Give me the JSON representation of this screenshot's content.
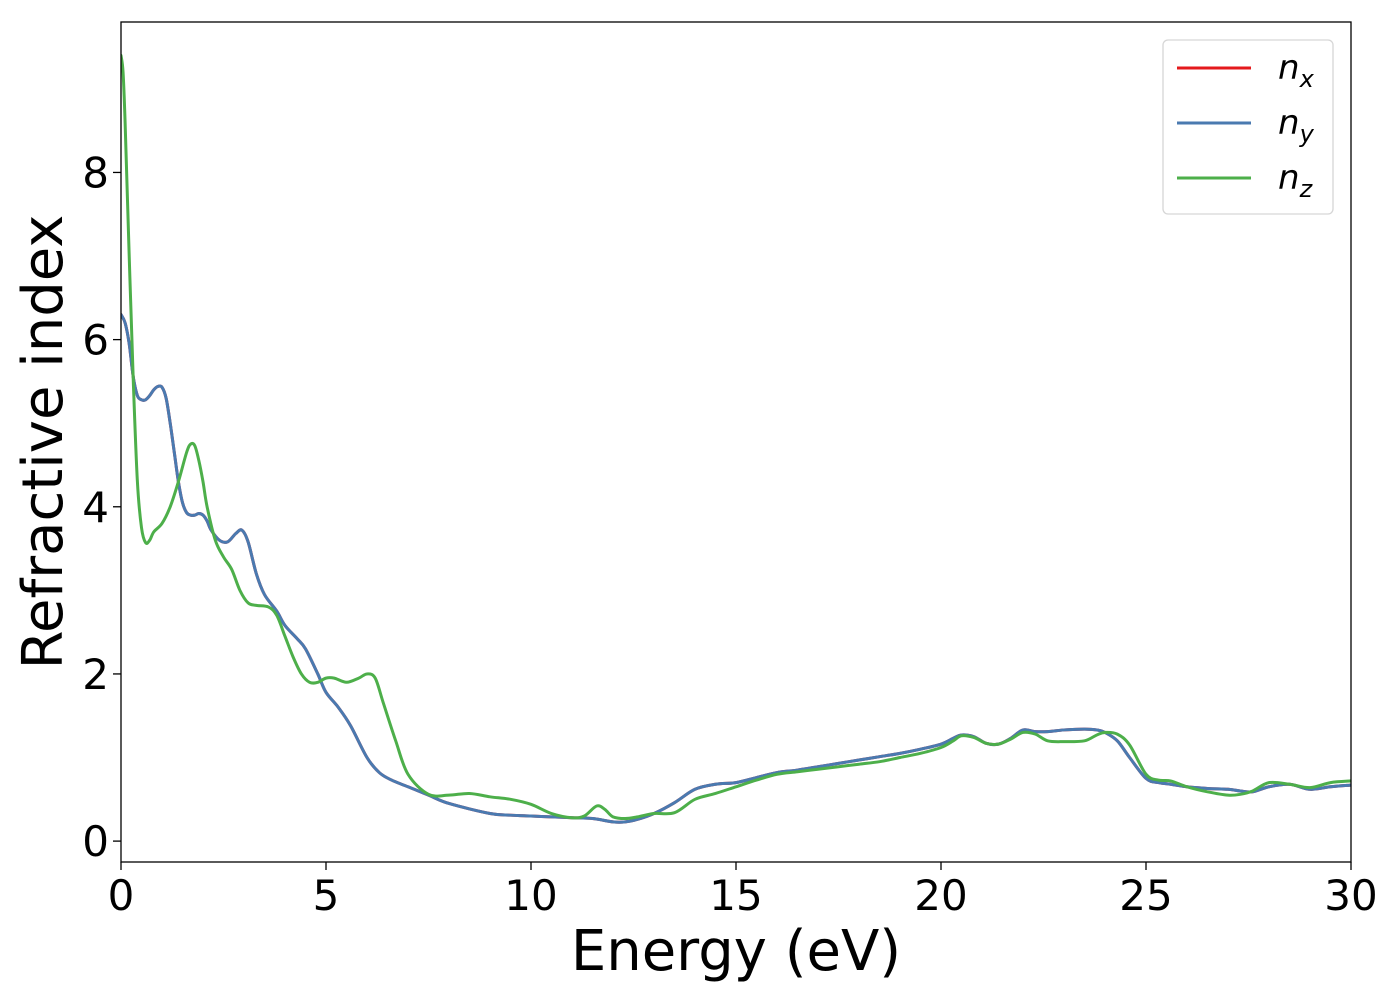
{
  "chart_data": {
    "type": "line",
    "title": "",
    "xlabel": "Energy (eV)",
    "ylabel": "Refractive index",
    "xlim": [
      0,
      30
    ],
    "ylim": [
      -0.25,
      9.8
    ],
    "xticks": [
      0,
      5,
      10,
      15,
      20,
      25,
      30
    ],
    "yticks": [
      0,
      2,
      4,
      6,
      8
    ],
    "grid": false,
    "legend_position": "top-right",
    "series": [
      {
        "name": "n_x",
        "label_main": "n",
        "label_sub": "x",
        "color": "#e41a1c",
        "x": [
          0,
          0.1,
          0.2,
          0.3,
          0.4,
          0.5,
          0.6,
          0.7,
          0.8,
          0.9,
          1.0,
          1.1,
          1.2,
          1.3,
          1.4,
          1.5,
          1.6,
          1.7,
          1.8,
          1.9,
          2.0,
          2.1,
          2.2,
          2.4,
          2.6,
          2.8,
          2.95,
          3.1,
          3.3,
          3.5,
          3.8,
          4.0,
          4.3,
          4.5,
          4.8,
          5.0,
          5.3,
          5.6,
          6.0,
          6.3,
          6.6,
          7.0,
          7.5,
          8.0,
          9.0,
          9.5,
          10.0,
          10.5,
          11.0,
          11.5,
          12.0,
          12.3,
          12.6,
          13.0,
          13.5,
          14.0,
          14.5,
          15.0,
          15.5,
          16.0,
          16.5,
          17.0,
          17.5,
          18.0,
          18.5,
          19.0,
          19.5,
          20.0,
          20.3,
          20.5,
          20.8,
          21.1,
          21.4,
          21.7,
          22.0,
          22.3,
          22.6,
          23.0,
          23.5,
          23.8,
          24.0,
          24.3,
          24.6,
          25.0,
          25.3,
          25.6,
          26.0,
          26.5,
          27.0,
          27.3,
          27.6,
          28.0,
          28.5,
          29.0,
          29.5,
          30.0
        ],
        "y": [
          6.3,
          6.2,
          5.95,
          5.55,
          5.33,
          5.28,
          5.28,
          5.33,
          5.4,
          5.44,
          5.43,
          5.3,
          5.0,
          4.65,
          4.3,
          4.05,
          3.93,
          3.9,
          3.9,
          3.92,
          3.9,
          3.83,
          3.72,
          3.6,
          3.58,
          3.68,
          3.72,
          3.58,
          3.2,
          2.95,
          2.75,
          2.58,
          2.42,
          2.3,
          2.0,
          1.78,
          1.6,
          1.38,
          1.0,
          0.82,
          0.73,
          0.65,
          0.55,
          0.45,
          0.33,
          0.31,
          0.3,
          0.29,
          0.28,
          0.27,
          0.23,
          0.23,
          0.26,
          0.33,
          0.46,
          0.62,
          0.68,
          0.7,
          0.76,
          0.82,
          0.85,
          0.89,
          0.93,
          0.97,
          1.01,
          1.05,
          1.1,
          1.16,
          1.23,
          1.27,
          1.25,
          1.17,
          1.16,
          1.23,
          1.33,
          1.31,
          1.31,
          1.33,
          1.34,
          1.33,
          1.3,
          1.2,
          1.0,
          0.75,
          0.7,
          0.68,
          0.65,
          0.63,
          0.62,
          0.6,
          0.59,
          0.65,
          0.68,
          0.62,
          0.65,
          0.67
        ]
      },
      {
        "name": "n_y",
        "label_main": "n",
        "label_sub": "y",
        "color": "#4a7ab0",
        "x": [
          0,
          0.1,
          0.2,
          0.3,
          0.4,
          0.5,
          0.6,
          0.7,
          0.8,
          0.9,
          1.0,
          1.1,
          1.2,
          1.3,
          1.4,
          1.5,
          1.6,
          1.7,
          1.8,
          1.9,
          2.0,
          2.1,
          2.2,
          2.4,
          2.6,
          2.8,
          2.95,
          3.1,
          3.3,
          3.5,
          3.8,
          4.0,
          4.3,
          4.5,
          4.8,
          5.0,
          5.3,
          5.6,
          6.0,
          6.3,
          6.6,
          7.0,
          7.5,
          8.0,
          9.0,
          9.5,
          10.0,
          10.5,
          11.0,
          11.5,
          12.0,
          12.3,
          12.6,
          13.0,
          13.5,
          14.0,
          14.5,
          15.0,
          15.5,
          16.0,
          16.5,
          17.0,
          17.5,
          18.0,
          18.5,
          19.0,
          19.5,
          20.0,
          20.3,
          20.5,
          20.8,
          21.1,
          21.4,
          21.7,
          22.0,
          22.3,
          22.6,
          23.0,
          23.5,
          23.8,
          24.0,
          24.3,
          24.6,
          25.0,
          25.3,
          25.6,
          26.0,
          26.5,
          27.0,
          27.3,
          27.6,
          28.0,
          28.5,
          29.0,
          29.5,
          30.0
        ],
        "y": [
          6.3,
          6.2,
          5.95,
          5.55,
          5.33,
          5.28,
          5.28,
          5.33,
          5.4,
          5.44,
          5.43,
          5.3,
          5.0,
          4.65,
          4.3,
          4.05,
          3.93,
          3.9,
          3.9,
          3.92,
          3.9,
          3.83,
          3.72,
          3.6,
          3.58,
          3.68,
          3.72,
          3.58,
          3.2,
          2.95,
          2.75,
          2.58,
          2.42,
          2.3,
          2.0,
          1.78,
          1.6,
          1.38,
          1.0,
          0.82,
          0.73,
          0.65,
          0.55,
          0.45,
          0.33,
          0.31,
          0.3,
          0.29,
          0.28,
          0.27,
          0.23,
          0.23,
          0.26,
          0.33,
          0.46,
          0.62,
          0.68,
          0.7,
          0.76,
          0.82,
          0.85,
          0.89,
          0.93,
          0.97,
          1.01,
          1.05,
          1.1,
          1.16,
          1.23,
          1.27,
          1.25,
          1.17,
          1.16,
          1.23,
          1.33,
          1.31,
          1.31,
          1.33,
          1.34,
          1.33,
          1.3,
          1.2,
          1.0,
          0.75,
          0.7,
          0.68,
          0.65,
          0.63,
          0.62,
          0.6,
          0.59,
          0.65,
          0.68,
          0.62,
          0.65,
          0.67
        ]
      },
      {
        "name": "n_z",
        "label_main": "n",
        "label_sub": "z",
        "color": "#4daf4a",
        "x": [
          0,
          0.05,
          0.1,
          0.2,
          0.3,
          0.4,
          0.5,
          0.6,
          0.7,
          0.8,
          1.0,
          1.2,
          1.4,
          1.6,
          1.7,
          1.8,
          1.9,
          2.0,
          2.1,
          2.3,
          2.5,
          2.7,
          2.9,
          3.1,
          3.3,
          3.6,
          3.8,
          4.0,
          4.2,
          4.4,
          4.6,
          4.8,
          5.0,
          5.2,
          5.5,
          5.8,
          6.0,
          6.2,
          6.4,
          6.7,
          7.0,
          7.5,
          8.0,
          8.5,
          9.0,
          9.5,
          10.0,
          10.5,
          11.0,
          11.3,
          11.6,
          11.8,
          12.0,
          12.3,
          12.6,
          13.0,
          13.5,
          14.0,
          14.5,
          15.0,
          15.5,
          16.0,
          16.5,
          17.0,
          17.5,
          18.0,
          18.5,
          19.0,
          19.5,
          20.0,
          20.3,
          20.5,
          20.8,
          21.1,
          21.4,
          21.7,
          22.0,
          22.3,
          22.6,
          23.0,
          23.5,
          23.8,
          24.0,
          24.3,
          24.6,
          25.0,
          25.3,
          25.6,
          26.0,
          26.5,
          27.0,
          27.3,
          27.6,
          28.0,
          28.5,
          29.0,
          29.5,
          30.0
        ],
        "y": [
          9.4,
          9.2,
          8.6,
          7.0,
          5.5,
          4.3,
          3.75,
          3.57,
          3.6,
          3.7,
          3.8,
          4.0,
          4.3,
          4.65,
          4.75,
          4.73,
          4.55,
          4.3,
          4.0,
          3.6,
          3.4,
          3.25,
          3.0,
          2.85,
          2.82,
          2.8,
          2.7,
          2.45,
          2.2,
          2.0,
          1.9,
          1.9,
          1.95,
          1.95,
          1.9,
          1.95,
          2.0,
          1.95,
          1.65,
          1.2,
          0.8,
          0.56,
          0.55,
          0.57,
          0.53,
          0.5,
          0.44,
          0.33,
          0.28,
          0.3,
          0.42,
          0.38,
          0.29,
          0.27,
          0.29,
          0.33,
          0.34,
          0.5,
          0.57,
          0.65,
          0.73,
          0.8,
          0.83,
          0.86,
          0.89,
          0.92,
          0.95,
          1.0,
          1.05,
          1.12,
          1.2,
          1.26,
          1.24,
          1.17,
          1.16,
          1.22,
          1.3,
          1.28,
          1.2,
          1.19,
          1.2,
          1.27,
          1.3,
          1.28,
          1.15,
          0.8,
          0.73,
          0.72,
          0.65,
          0.59,
          0.55,
          0.56,
          0.6,
          0.7,
          0.68,
          0.64,
          0.7,
          0.72
        ]
      }
    ]
  }
}
